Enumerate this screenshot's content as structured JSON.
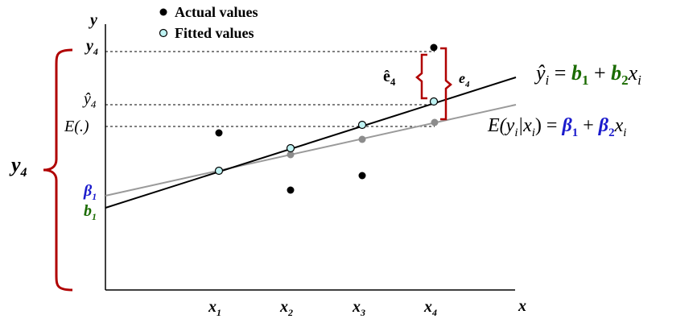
{
  "legend": {
    "actual_label": "Actual values",
    "fitted_label": "Fitted values"
  },
  "axes": {
    "y_label": "y",
    "x_label": "x",
    "x_ticks": [
      {
        "base": "x",
        "sub": "1"
      },
      {
        "base": "x",
        "sub": "2"
      },
      {
        "base": "x",
        "sub": "3"
      },
      {
        "base": "x",
        "sub": "4"
      }
    ],
    "y_marks": {
      "y4": {
        "base": "y",
        "sub": "4"
      },
      "yhat4": {
        "base": "ŷ",
        "sub": "4"
      },
      "expect": "E(.)"
    }
  },
  "intercepts": {
    "beta1": {
      "base": "β",
      "sub": "1"
    },
    "b1": {
      "base": "b",
      "sub": "1"
    }
  },
  "brackets": {
    "y4_total": {
      "base": "y",
      "sub": "4"
    },
    "ehat4": {
      "base": "ê",
      "sub": "4"
    },
    "e4": {
      "base": "e",
      "sub": "4"
    }
  },
  "equations": {
    "fitted": {
      "lhs_base": "ŷ",
      "lhs_sub": "i",
      "eq": " = ",
      "t1_base": "b",
      "t1_sub": "1",
      "plus": " + ",
      "t2_base": "b",
      "t2_sub": "2",
      "var_base": "x",
      "var_sub": "i"
    },
    "population": {
      "lhs": "E(y",
      "lhs_sub1": "i",
      "bar": "|x",
      "lhs_sub2": "i",
      "close": ")",
      "eq": " = ",
      "t1_base": "β",
      "t1_sub": "1",
      "plus": " + ",
      "t2_base": "β",
      "t2_sub": "2",
      "var_base": "x",
      "var_sub": "i"
    }
  },
  "colors": {
    "actual": "#000000",
    "fitted_fill": "#bff3f3",
    "fitted_line": "#000000",
    "population_line": "#9a9a9a",
    "population_point": "#8c8c8c",
    "bracket": "#b00000",
    "green": "#1a6b00",
    "blue": "#1a1acc"
  }
}
